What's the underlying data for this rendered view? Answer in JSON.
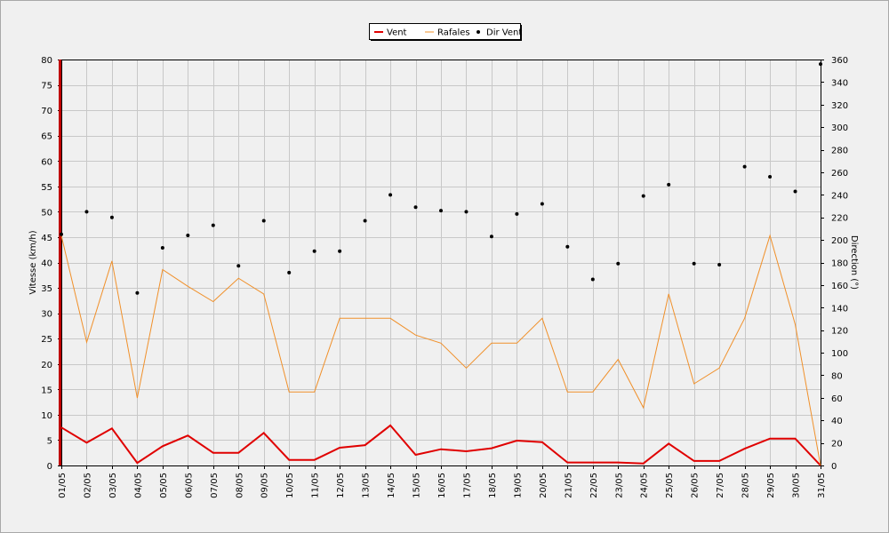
{
  "chart_data": {
    "type": "line",
    "categories": [
      "01/05",
      "02/05",
      "03/05",
      "04/05",
      "05/05",
      "06/05",
      "07/05",
      "08/05",
      "09/05",
      "10/05",
      "11/05",
      "12/05",
      "13/05",
      "14/05",
      "15/05",
      "16/05",
      "17/05",
      "18/05",
      "19/05",
      "20/05",
      "21/05",
      "22/05",
      "23/05",
      "24/05",
      "25/05",
      "26/05",
      "27/05",
      "28/05",
      "29/05",
      "30/05",
      "31/05"
    ],
    "ylabel": "Vitesse (km/h)",
    "ylim": [
      0,
      80
    ],
    "y_ticks": [
      "0",
      "5",
      "10",
      "15",
      "20",
      "25",
      "30",
      "35",
      "40",
      "45",
      "50",
      "55",
      "60",
      "65",
      "70",
      "75",
      "80"
    ],
    "y2label": "Direction (°)",
    "y2lim": [
      0,
      360
    ],
    "y2_ticks": [
      "0",
      "20",
      "40",
      "60",
      "80",
      "100",
      "120",
      "140",
      "160",
      "180",
      "200",
      "220",
      "240",
      "260",
      "280",
      "300",
      "320",
      "340",
      "360"
    ],
    "grid": true,
    "legend_position": "top-center",
    "series": [
      {
        "name": "Vent",
        "color": "#e00000",
        "axis": "left",
        "style": "line",
        "values": [
          7.5,
          4.5,
          7.3,
          0.5,
          3.8,
          5.9,
          2.5,
          2.5,
          6.4,
          1.1,
          1.1,
          3.5,
          4.0,
          7.9,
          2.1,
          3.2,
          2.8,
          3.4,
          4.9,
          4.6,
          0.6,
          0.6,
          0.6,
          0.4,
          4.3,
          0.9,
          0.9,
          3.3,
          5.3,
          5.3,
          0.0
        ]
      },
      {
        "name": "Rafales",
        "color": "#f0902a",
        "axis": "left",
        "style": "line",
        "values": [
          45.3,
          24.3,
          40.3,
          13.3,
          38.6,
          35.3,
          32.3,
          36.9,
          33.8,
          14.5,
          14.5,
          29.0,
          29.0,
          29.0,
          25.7,
          24.1,
          19.2,
          24.1,
          24.1,
          29.0,
          14.5,
          14.5,
          20.9,
          11.4,
          33.8,
          16.1,
          19.2,
          29.0,
          45.3,
          27.8,
          0.0
        ]
      },
      {
        "name": "Dir Vent",
        "color": "#000000",
        "axis": "right",
        "style": "points",
        "values": [
          205,
          225,
          220,
          153,
          193,
          204,
          213,
          177,
          217,
          171,
          190,
          190,
          217,
          240,
          229,
          226,
          225,
          203,
          223,
          232,
          194,
          165,
          179,
          239,
          249,
          179,
          178,
          265,
          256,
          243,
          356
        ]
      }
    ]
  }
}
